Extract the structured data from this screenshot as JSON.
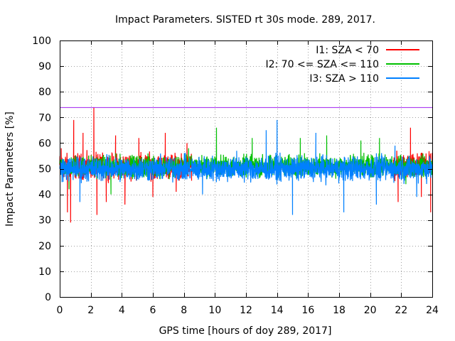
{
  "chart_data": {
    "type": "line",
    "title": "Impact Parameters. SISTED rt 30s mode. 289, 2017.",
    "xlabel": "GPS time [hours of doy 289, 2017]",
    "ylabel": "Impact Parameters [%]",
    "xlim": [
      0,
      24
    ],
    "ylim": [
      0,
      100
    ],
    "xticks": [
      0,
      2,
      4,
      6,
      8,
      10,
      12,
      14,
      16,
      18,
      20,
      22,
      24
    ],
    "yticks": [
      0,
      10,
      20,
      30,
      40,
      50,
      60,
      70,
      80,
      90,
      100
    ],
    "grid": true,
    "legend_position": "top-right",
    "reference_line": {
      "y": 74,
      "color": "#a020f0"
    },
    "series": [
      {
        "name": "I1: SZA < 70",
        "color": "#ff0000",
        "center": 51,
        "spread": 7,
        "segments": [
          [
            0,
            8.5
          ],
          [
            21.5,
            24
          ]
        ],
        "x": [
          0.1,
          0.5,
          0.7,
          0.9,
          1.5,
          2.2,
          2.4,
          3.0,
          3.6,
          4.2,
          5.1,
          6.0,
          6.8,
          7.5,
          8.2,
          21.8,
          22.6,
          23.3,
          23.9
        ],
        "values": [
          58,
          33,
          29,
          69,
          64,
          74,
          32,
          37,
          63,
          36,
          62,
          39,
          64,
          41,
          60,
          37,
          66,
          39,
          33
        ]
      },
      {
        "name": "I2: 70 <= SZA <= 110",
        "color": "#00c000",
        "center": 51,
        "spread": 6,
        "segments": [
          [
            0,
            24
          ]
        ],
        "x": [
          0.6,
          3.3,
          8.3,
          10.1,
          12.4,
          15.5,
          17.2,
          19.4,
          20.6,
          22.3
        ],
        "values": [
          42,
          40,
          58,
          66,
          62,
          62,
          63,
          61,
          62,
          44
        ]
      },
      {
        "name": "I3: SZA > 110",
        "color": "#0080ff",
        "center": 50,
        "spread": 7,
        "segments": [
          [
            0,
            24
          ]
        ],
        "x": [
          1.3,
          9.2,
          11.4,
          13.3,
          14.0,
          15.0,
          16.5,
          18.3,
          20.4,
          21.6,
          23.0
        ],
        "values": [
          37,
          40,
          57,
          65,
          69,
          32,
          64,
          33,
          36,
          59,
          39
        ]
      }
    ]
  }
}
